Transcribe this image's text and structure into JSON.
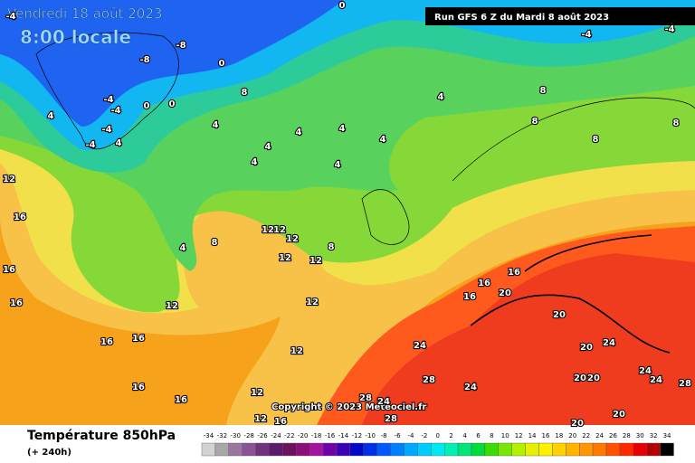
{
  "header": {
    "valid_date": "Vendredi 18 août 2023",
    "valid_time": "8:00 locale",
    "run": "Run GFS 6 Z du Mardi 8 août 2023"
  },
  "map": {
    "copyright": "Copyright © 2023 Meteociel.fr",
    "contour_labels": [
      -4,
      -8,
      -8,
      0,
      0,
      8,
      -4,
      -4,
      0,
      0,
      4,
      -4,
      -4,
      4,
      4,
      4,
      4,
      4,
      4,
      4,
      4,
      4,
      8,
      8,
      8,
      -4,
      -4,
      8,
      12,
      16,
      16,
      16,
      4,
      8,
      12,
      12,
      12,
      8,
      12,
      12,
      12,
      12,
      16,
      16,
      16,
      20,
      20,
      20,
      24,
      24,
      12,
      16,
      16,
      16,
      16,
      12,
      28,
      24,
      28,
      24,
      28,
      20,
      20,
      20,
      20,
      24,
      24,
      28,
      12,
      16
    ]
  },
  "footer": {
    "title": "Température 850hPa",
    "lead": "(+ 240h)",
    "scale_values": [
      -34,
      -32,
      -30,
      -28,
      -26,
      -24,
      -22,
      -20,
      -18,
      -16,
      -14,
      -12,
      -10,
      -8,
      -6,
      -4,
      -2,
      0,
      2,
      4,
      6,
      8,
      10,
      12,
      14,
      16,
      18,
      20,
      22,
      24,
      26,
      28,
      30,
      32,
      34
    ],
    "scale_colors": [
      "#d2d2d2",
      "#a8a8a8",
      "#9a76a0",
      "#8a5494",
      "#73307f",
      "#5c1a6c",
      "#6d1062",
      "#8a0f78",
      "#a014a0",
      "#7000aa",
      "#3c00b4",
      "#0008c8",
      "#0030e6",
      "#0058ff",
      "#0080ff",
      "#00a8ff",
      "#00ccff",
      "#00e8f0",
      "#00f0b4",
      "#00e678",
      "#00dc3c",
      "#3cdc00",
      "#78e600",
      "#b4f000",
      "#e6f000",
      "#fff000",
      "#ffd200",
      "#ffb400",
      "#ff9600",
      "#ff7800",
      "#ff5000",
      "#ff2800",
      "#e60000",
      "#b40000",
      "#000000"
    ]
  }
}
